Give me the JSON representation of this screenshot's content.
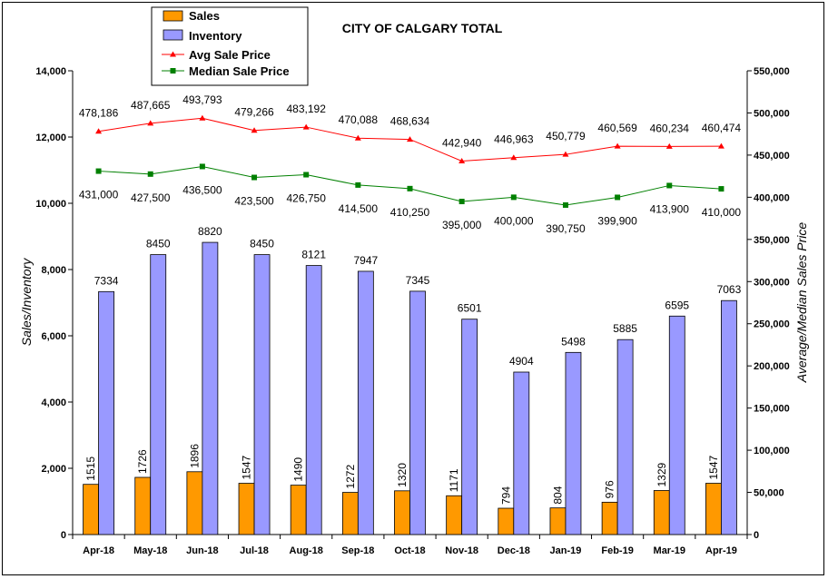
{
  "chart_data": {
    "type": "bar",
    "title": "CITY OF CALGARY TOTAL",
    "ylabel_left": "Sales/Inventory",
    "ylabel_right": "Average/Median Sales Price",
    "ylim_left": [
      0,
      14000
    ],
    "ylim_right": [
      0,
      550000
    ],
    "yticks_left": [
      "0",
      "2,000",
      "4,000",
      "6,000",
      "8,000",
      "10,000",
      "12,000",
      "14,000"
    ],
    "yticks_right": [
      "0",
      "50,000",
      "100,000",
      "150,000",
      "200,000",
      "250,000",
      "300,000",
      "350,000",
      "400,000",
      "450,000",
      "500,000",
      "550,000"
    ],
    "categories": [
      "Apr-18",
      "May-18",
      "Jun-18",
      "Jul-18",
      "Aug-18",
      "Sep-18",
      "Oct-18",
      "Nov-18",
      "Dec-18",
      "Jan-19",
      "Feb-19",
      "Mar-19",
      "Apr-19"
    ],
    "legend_position": "top-left",
    "series": [
      {
        "name": "Sales",
        "kind": "bar",
        "axis": "left",
        "color": "#FF9900",
        "values": [
          1515,
          1726,
          1896,
          1547,
          1490,
          1272,
          1320,
          1171,
          794,
          804,
          976,
          1329,
          1547
        ],
        "labels": [
          "1515",
          "1726",
          "1896",
          "1547",
          "1490",
          "1272",
          "1320",
          "1171",
          "794",
          "804",
          "976",
          "1329",
          "1547"
        ]
      },
      {
        "name": "Inventory",
        "kind": "bar",
        "axis": "left",
        "color": "#9999FF",
        "values": [
          7334,
          8450,
          8820,
          8450,
          8121,
          7947,
          7345,
          6501,
          4904,
          5498,
          5885,
          6595,
          7063
        ],
        "labels": [
          "7334",
          "8450",
          "8820",
          "8450",
          "8121",
          "7947",
          "7345",
          "6501",
          "4904",
          "5498",
          "5885",
          "6595",
          "7063"
        ]
      },
      {
        "name": "Avg Sale Price",
        "kind": "line",
        "axis": "right",
        "color": "#FF0000",
        "marker": "triangle",
        "values": [
          478186,
          487665,
          493793,
          479266,
          483192,
          470088,
          468634,
          442940,
          446963,
          450779,
          460569,
          460234,
          460474
        ],
        "labels": [
          "478,186",
          "487,665",
          "493,793",
          "479,266",
          "483,192",
          "470,088",
          "468,634",
          "442,940",
          "446,963",
          "450,779",
          "460,569",
          "460,234",
          "460,474"
        ]
      },
      {
        "name": "Median Sale Price",
        "kind": "line",
        "axis": "right",
        "color": "#008000",
        "marker": "square",
        "values": [
          431000,
          427500,
          436500,
          423500,
          426750,
          414500,
          410250,
          395000,
          400000,
          390750,
          399900,
          413900,
          410000
        ],
        "labels": [
          "431,000",
          "427,500",
          "436,500",
          "423,500",
          "426,750",
          "414,500",
          "410,250",
          "395,000",
          "400,000",
          "390,750",
          "399,900",
          "413,900",
          "410,000"
        ]
      }
    ]
  }
}
